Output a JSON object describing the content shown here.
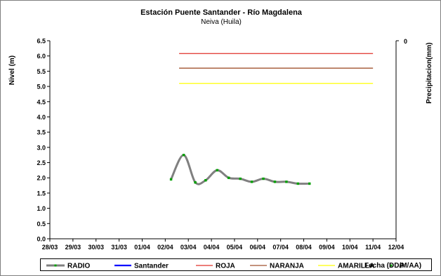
{
  "chart_data": {
    "type": "line",
    "title": "Estación Puente Santander - Río Magdalena",
    "subtitle": "Neiva (Huila)",
    "xlabel": "Fecha (DD/M/AA)",
    "ylabel": "Nivel (m)",
    "y2label": "Precipitacion(mm)",
    "ylim": [
      0.0,
      6.5
    ],
    "y_ticks": [
      "0.0",
      "0.5",
      "1.0",
      "1.5",
      "2.0",
      "2.5",
      "3.0",
      "3.5",
      "4.0",
      "4.5",
      "5.0",
      "5.5",
      "6.0",
      "6.5"
    ],
    "y2_ticks": [
      "0"
    ],
    "x_ticks": [
      "28/03",
      "29/03",
      "30/03",
      "31/03",
      "01/04",
      "02/04",
      "03/04",
      "04/04",
      "05/04",
      "06/04",
      "07/04",
      "08/04",
      "09/04",
      "10/04",
      "11/04",
      "12/04"
    ],
    "x_domain_days": [
      0,
      15
    ],
    "grid": false,
    "legend_position": "bottom",
    "series": [
      {
        "name": "RADIO",
        "color": "#808080",
        "style": "smooth-line-markers",
        "x": [
          5.25,
          5.8,
          6.3,
          6.75,
          7.25,
          7.75,
          8.25,
          8.75,
          9.25,
          9.75,
          10.25,
          10.75,
          11.25
        ],
        "y": [
          1.95,
          2.75,
          1.85,
          1.92,
          2.25,
          2.0,
          1.97,
          1.87,
          1.97,
          1.87,
          1.87,
          1.81,
          1.81
        ]
      },
      {
        "name": "Santander",
        "color": "#0000ff",
        "style": "line",
        "x": [],
        "y": []
      },
      {
        "name": "ROJA",
        "color": "#e0302a",
        "style": "line",
        "x": [
          5.6,
          14.0
        ],
        "y": [
          6.08,
          6.08
        ]
      },
      {
        "name": "NARANJA",
        "color": "#a0522d",
        "style": "line",
        "x": [
          5.6,
          14.0
        ],
        "y": [
          5.6,
          5.6
        ]
      },
      {
        "name": "AMARILLA",
        "color": "#ffff00",
        "style": "line",
        "x": [
          5.6,
          14.0
        ],
        "y": [
          5.1,
          5.1
        ]
      },
      {
        "name": "P",
        "color": "#00a000",
        "style": "markers",
        "x": [
          5.25,
          5.8,
          6.3,
          6.75,
          7.25,
          7.75,
          8.25,
          8.75,
          9.25,
          9.75,
          10.25,
          10.75,
          11.25
        ],
        "y": [
          1.95,
          2.75,
          1.85,
          1.92,
          2.25,
          2.0,
          1.97,
          1.87,
          1.97,
          1.87,
          1.87,
          1.81,
          1.81
        ]
      }
    ]
  }
}
